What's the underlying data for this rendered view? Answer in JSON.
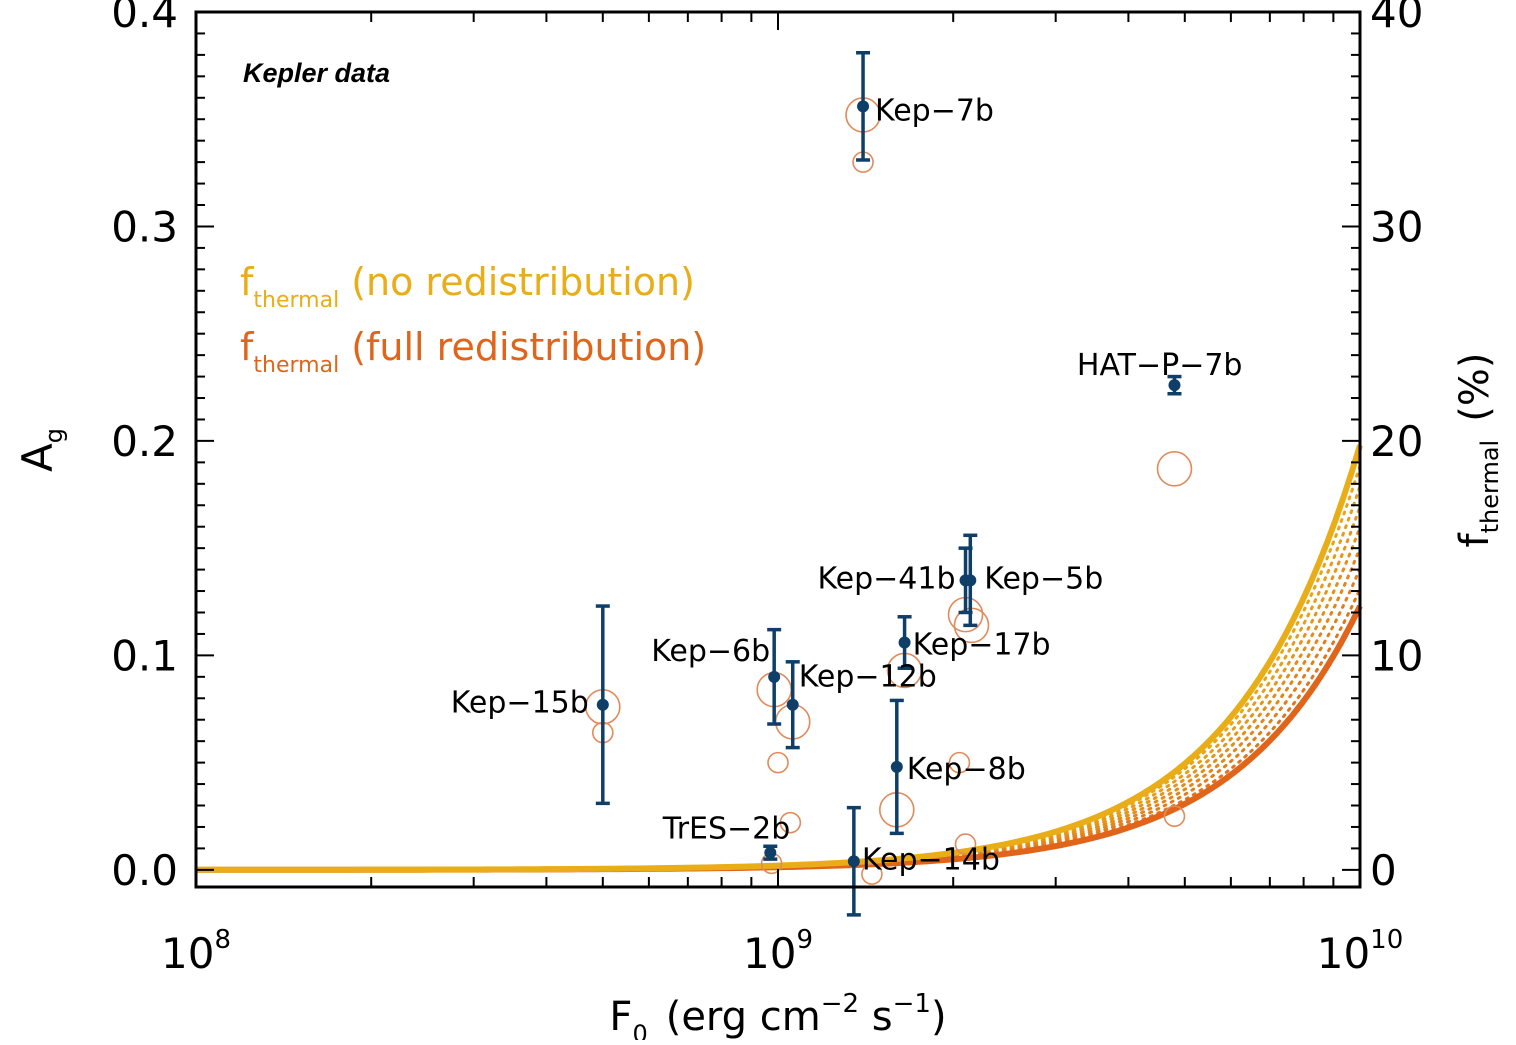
{
  "chart_data": {
    "type": "scatter",
    "annotation": "Kepler data",
    "xlabel": "F",
    "xlabel_sub": "0",
    "xlabel_units": "(erg cm",
    "xlabel_exp1": "−2",
    "xlabel_units2": " s",
    "xlabel_exp2": "−1",
    "xlabel_close": ")",
    "x_scale": "log",
    "xlim": [
      100000000,
      10000000000
    ],
    "x_ticks": [
      {
        "base": "10",
        "exp": "8",
        "value": 100000000
      },
      {
        "base": "10",
        "exp": "9",
        "value": 1000000000
      },
      {
        "base": "10",
        "exp": "10",
        "value": 10000000000
      }
    ],
    "ylabel": "A",
    "ylabel_sub": "g",
    "ylim": [
      -0.008,
      0.4
    ],
    "y_ticks": [
      "0.0",
      "0.1",
      "0.2",
      "0.3",
      "0.4"
    ],
    "y2label": "f",
    "y2label_sub": "thermal",
    "y2label_units": "(%)",
    "y2lim": [
      -0.8,
      40
    ],
    "y2_ticks": [
      "0",
      "10",
      "20",
      "30",
      "40"
    ],
    "legend_placement": "upper-left",
    "legend": [
      {
        "f": "f",
        "sub": "thermal",
        "text": "(no redistribution)",
        "color": "#e9ad17"
      },
      {
        "f": "f",
        "sub": "thermal",
        "text": "(full redistribution)",
        "color": "#e0651b"
      }
    ],
    "curves": {
      "no_redistribution": {
        "x_start": 100000000,
        "x_end": 10000000000,
        "y_end_percent": 19.8,
        "color": "#e9ad17"
      },
      "full_redistribution": {
        "x_start": 100000000,
        "x_end": 10000000000,
        "y_end_percent": 12.3,
        "color": "#e0651b"
      },
      "intermediate_count": 8
    },
    "series": [
      {
        "color": "#0f3f68",
        "points": [
          {
            "label": "Kep−7b",
            "x": 1400000000,
            "y": 0.356,
            "err": 0.025
          },
          {
            "label": "HAT−P−7b",
            "x": 4800000000,
            "y": 0.226,
            "err": 0.004
          },
          {
            "label": "Kep−41b",
            "x": 2100000000,
            "y": 0.135,
            "err": 0.015
          },
          {
            "label": "Kep−5b",
            "x": 2140000000,
            "y": 0.135,
            "err": 0.021
          },
          {
            "label": "Kep−17b",
            "x": 1650000000,
            "y": 0.106,
            "err": 0.012
          },
          {
            "label": "Kep−6b",
            "x": 985000000,
            "y": 0.09,
            "err": 0.022
          },
          {
            "label": "Kep−12b",
            "x": 1060000000,
            "y": 0.077,
            "err": 0.02
          },
          {
            "label": "Kep−15b",
            "x": 500000000,
            "y": 0.077,
            "err": 0.046
          },
          {
            "label": "Kep−8b",
            "x": 1600000000,
            "y": 0.048,
            "err": 0.031
          },
          {
            "label": "TrES−2b",
            "x": 970000000,
            "y": 0.008,
            "err": 0.003
          },
          {
            "label": "Kep−14b",
            "x": 1350000000,
            "y": 0.004,
            "err": 0.025
          }
        ]
      }
    ],
    "thermal_markers": {
      "color": "#e28a5a",
      "points": [
        {
          "x": 1400000000,
          "y": 0.352,
          "size": "large"
        },
        {
          "x": 1400000000,
          "y": 0.33,
          "size": "small"
        },
        {
          "x": 4800000000,
          "y": 0.187,
          "size": "large"
        },
        {
          "x": 4800000000,
          "y": 0.025,
          "size": "small"
        },
        {
          "x": 2100000000,
          "y": 0.119,
          "size": "large"
        },
        {
          "x": 2150000000,
          "y": 0.114,
          "size": "large"
        },
        {
          "x": 1650000000,
          "y": 0.093,
          "size": "large"
        },
        {
          "x": 985000000,
          "y": 0.084,
          "size": "large"
        },
        {
          "x": 1060000000,
          "y": 0.069,
          "size": "large"
        },
        {
          "x": 500000000,
          "y": 0.076,
          "size": "large"
        },
        {
          "x": 500000000,
          "y": 0.064,
          "size": "small"
        },
        {
          "x": 1000000000,
          "y": 0.05,
          "size": "small"
        },
        {
          "x": 1050000000,
          "y": 0.022,
          "size": "small"
        },
        {
          "x": 1600000000,
          "y": 0.028,
          "size": "large"
        },
        {
          "x": 2050000000,
          "y": 0.05,
          "size": "small"
        },
        {
          "x": 2100000000,
          "y": 0.012,
          "size": "small"
        },
        {
          "x": 975000000,
          "y": 0.003,
          "size": "small"
        },
        {
          "x": 1450000000,
          "y": -0.002,
          "size": "small"
        }
      ]
    }
  }
}
